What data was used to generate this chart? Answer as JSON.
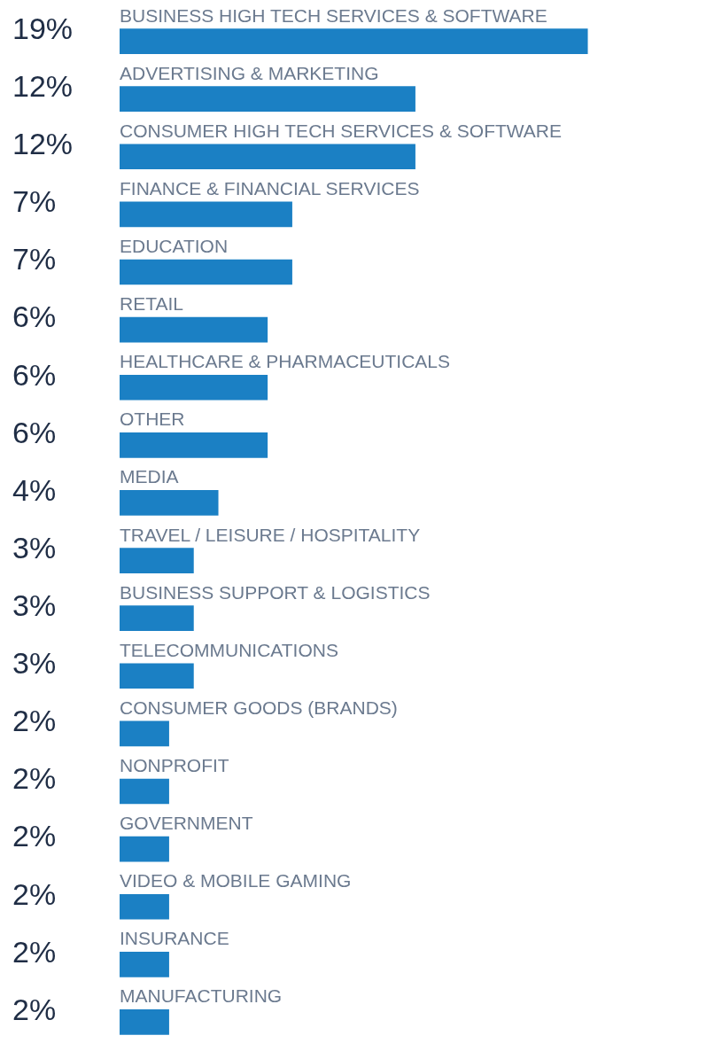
{
  "chart_data": {
    "type": "bar",
    "orientation": "horizontal",
    "color": "#1b80c4",
    "value_labels": [
      "19%",
      "12%",
      "12%",
      "7%",
      "7%",
      "6%",
      "6%",
      "6%",
      "4%",
      "3%",
      "3%",
      "3%",
      "2%",
      "2%",
      "2%",
      "2%",
      "2%",
      "2%"
    ],
    "categories": [
      "BUSINESS HIGH TECH SERVICES & SOFTWARE",
      "ADVERTISING & MARKETING",
      "CONSUMER HIGH TECH SERVICES & SOFTWARE",
      "FINANCE & FINANCIAL SERVICES",
      "EDUCATION",
      "RETAIL",
      "HEALTHCARE & PHARMACEUTICALS",
      "OTHER",
      "MEDIA",
      "TRAVEL / LEISURE / HOSPITALITY",
      "BUSINESS SUPPORT & LOGISTICS",
      "TELECOMMUNICATIONS",
      "CONSUMER GOODS (BRANDS)",
      "NONPROFIT",
      "GOVERNMENT",
      "VIDEO & MOBILE GAMING",
      "INSURANCE",
      "MANUFACTURING"
    ],
    "values": [
      19,
      12,
      12,
      7,
      7,
      6,
      6,
      6,
      4,
      3,
      3,
      3,
      2,
      2,
      2,
      2,
      2,
      2
    ]
  }
}
